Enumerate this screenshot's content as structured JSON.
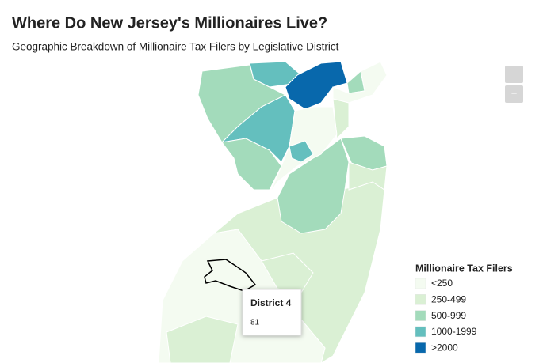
{
  "title": "Where Do New Jersey's Millionaires Live?",
  "subtitle": "Geographic Breakdown of Millionaire Tax Filers by Legislative District",
  "zoom": {
    "in": "+",
    "out": "−"
  },
  "legend": {
    "title": "Millionaire Tax Filers",
    "items": [
      {
        "label": "<250",
        "color": "#f4fbf1"
      },
      {
        "label": "250-499",
        "color": "#daf0d4"
      },
      {
        "label": "500-999",
        "color": "#a3dbbb"
      },
      {
        "label": "1000-1999",
        "color": "#64bfbe"
      },
      {
        "label": ">2000",
        "color": "#0868ac"
      }
    ]
  },
  "tooltip": {
    "title": "District 4",
    "value": 81
  }
}
